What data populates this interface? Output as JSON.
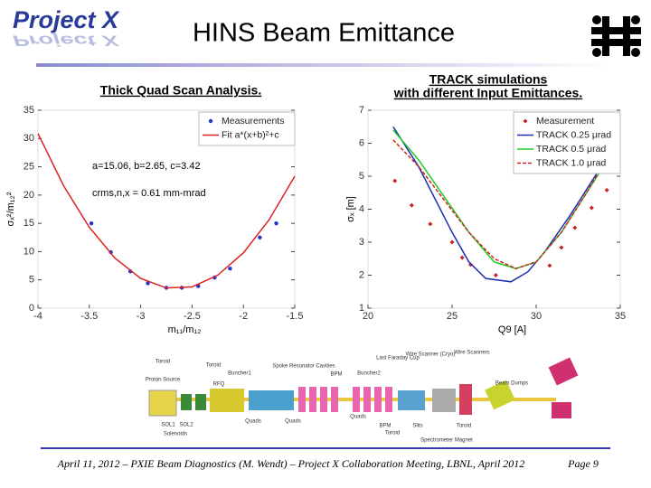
{
  "header": {
    "logo": "Project X",
    "title": "HINS Beam Emittance"
  },
  "chart_data": [
    {
      "type": "line",
      "title": [
        "Thick Quad Scan Analysis."
      ],
      "x_label": "m₁₁/m₁₂",
      "y_label": "σₓ²/m₁₂²",
      "xlim": [
        -4,
        -1.5
      ],
      "ylim": [
        0,
        35
      ],
      "xticks": [
        -4,
        -3.5,
        -3,
        -2.5,
        -2,
        -1.5
      ],
      "yticks": [
        0,
        5,
        10,
        15,
        20,
        25,
        30,
        35
      ],
      "legend": "upper right",
      "annotations": [
        "a=15.06, b=2.65, c=3.42",
        "crms,n,x = 0.61 mm-mrad"
      ],
      "series": [
        {
          "name": "Measurements",
          "color": "#2233cc",
          "style": "dots",
          "x": [
            -3.48,
            -3.29,
            -3.1,
            -2.93,
            -2.75,
            -2.6,
            -2.44,
            -2.28,
            -2.13,
            -1.84,
            -1.68
          ],
          "values": [
            15.0,
            9.9,
            6.5,
            4.4,
            3.6,
            3.6,
            3.9,
            5.4,
            7.0,
            12.5,
            15.0
          ]
        },
        {
          "name": "Fit a*(x+b)²+c",
          "color": "#dd2222",
          "style": "solid",
          "x": [
            -4,
            -3.75,
            -3.5,
            -3.25,
            -3,
            -2.75,
            -2.5,
            -2.25,
            -2,
            -1.75,
            -1.5
          ],
          "values": [
            30.87,
            21.64,
            14.3,
            8.84,
            5.26,
            3.57,
            3.76,
            5.83,
            9.78,
            15.62,
            23.34
          ]
        }
      ]
    },
    {
      "type": "line",
      "title": [
        "TRACK simulations",
        "with different  Input Emittances."
      ],
      "x_label": "Q9 [A]",
      "y_label": "σₓ [m]",
      "xlim": [
        20,
        35
      ],
      "ylim": [
        1,
        7
      ],
      "xticks": [
        20,
        25,
        30,
        35
      ],
      "yticks": [
        1,
        2,
        3,
        4,
        5,
        6,
        7
      ],
      "legend": "upper right",
      "series": [
        {
          "name": "Measurement",
          "color": "#cc2222",
          "style": "diamonds",
          "x": [
            21.6,
            22.6,
            23.7,
            25.0,
            25.6,
            26.1,
            27.6,
            30.8,
            31.5,
            32.3,
            33.3,
            34.2
          ],
          "values": [
            4.86,
            4.12,
            3.55,
            3.0,
            2.53,
            2.32,
            2.0,
            2.29,
            2.84,
            3.44,
            4.04,
            4.58
          ]
        },
        {
          "name": "TRACK 0.25 μrad",
          "color": "#1a2fb0",
          "style": "solid",
          "x": [
            21.5,
            23,
            24,
            25,
            26,
            27,
            28.5,
            29.5,
            30.5,
            32,
            33.5,
            35
          ],
          "values": [
            6.5,
            5.3,
            4.3,
            3.3,
            2.4,
            1.9,
            1.8,
            2.1,
            2.7,
            3.8,
            5.0,
            6.3
          ]
        },
        {
          "name": "TRACK 0.5 μrad",
          "color": "#22cc22",
          "style": "solid",
          "x": [
            21.5,
            23,
            24.5,
            26,
            27.5,
            28.8,
            30,
            31.5,
            33,
            34.5,
            35
          ],
          "values": [
            6.4,
            5.5,
            4.4,
            3.3,
            2.4,
            2.2,
            2.4,
            3.3,
            4.5,
            5.7,
            6.1
          ]
        },
        {
          "name": "TRACK 1.0 μrad",
          "color": "#cc2222",
          "style": "dashed",
          "x": [
            21.5,
            23,
            24.5,
            26,
            27.5,
            28.8,
            30,
            31.5,
            33,
            34.5,
            35
          ],
          "values": [
            6.1,
            5.3,
            4.3,
            3.3,
            2.5,
            2.2,
            2.4,
            3.3,
            4.5,
            5.8,
            6.2
          ]
        }
      ]
    }
  ],
  "diagram": {
    "labels": [
      "Toroid",
      "Proton Source",
      "SOL1",
      "SOL2",
      "Solenoids",
      "Toroid",
      "RFQ",
      "Buncher1",
      "Quads",
      "Spoke Resonator Cavities",
      "Quads",
      "BPM",
      "Buncher2",
      "Quads",
      "Last Faraday Cup",
      "BPM",
      "Toroid",
      "Wire Scanner (Cryo)",
      "Slits",
      "Spectrometer Magnet",
      "Wire Scanners",
      "Toroid",
      "Beam Dumps"
    ]
  },
  "footer": {
    "text": "April 11, 2012 – PXIE Beam Diagnostics (M. Wendt) – Project X Collaboration Meeting, LBNL, April 2012",
    "page": "Page  9"
  }
}
